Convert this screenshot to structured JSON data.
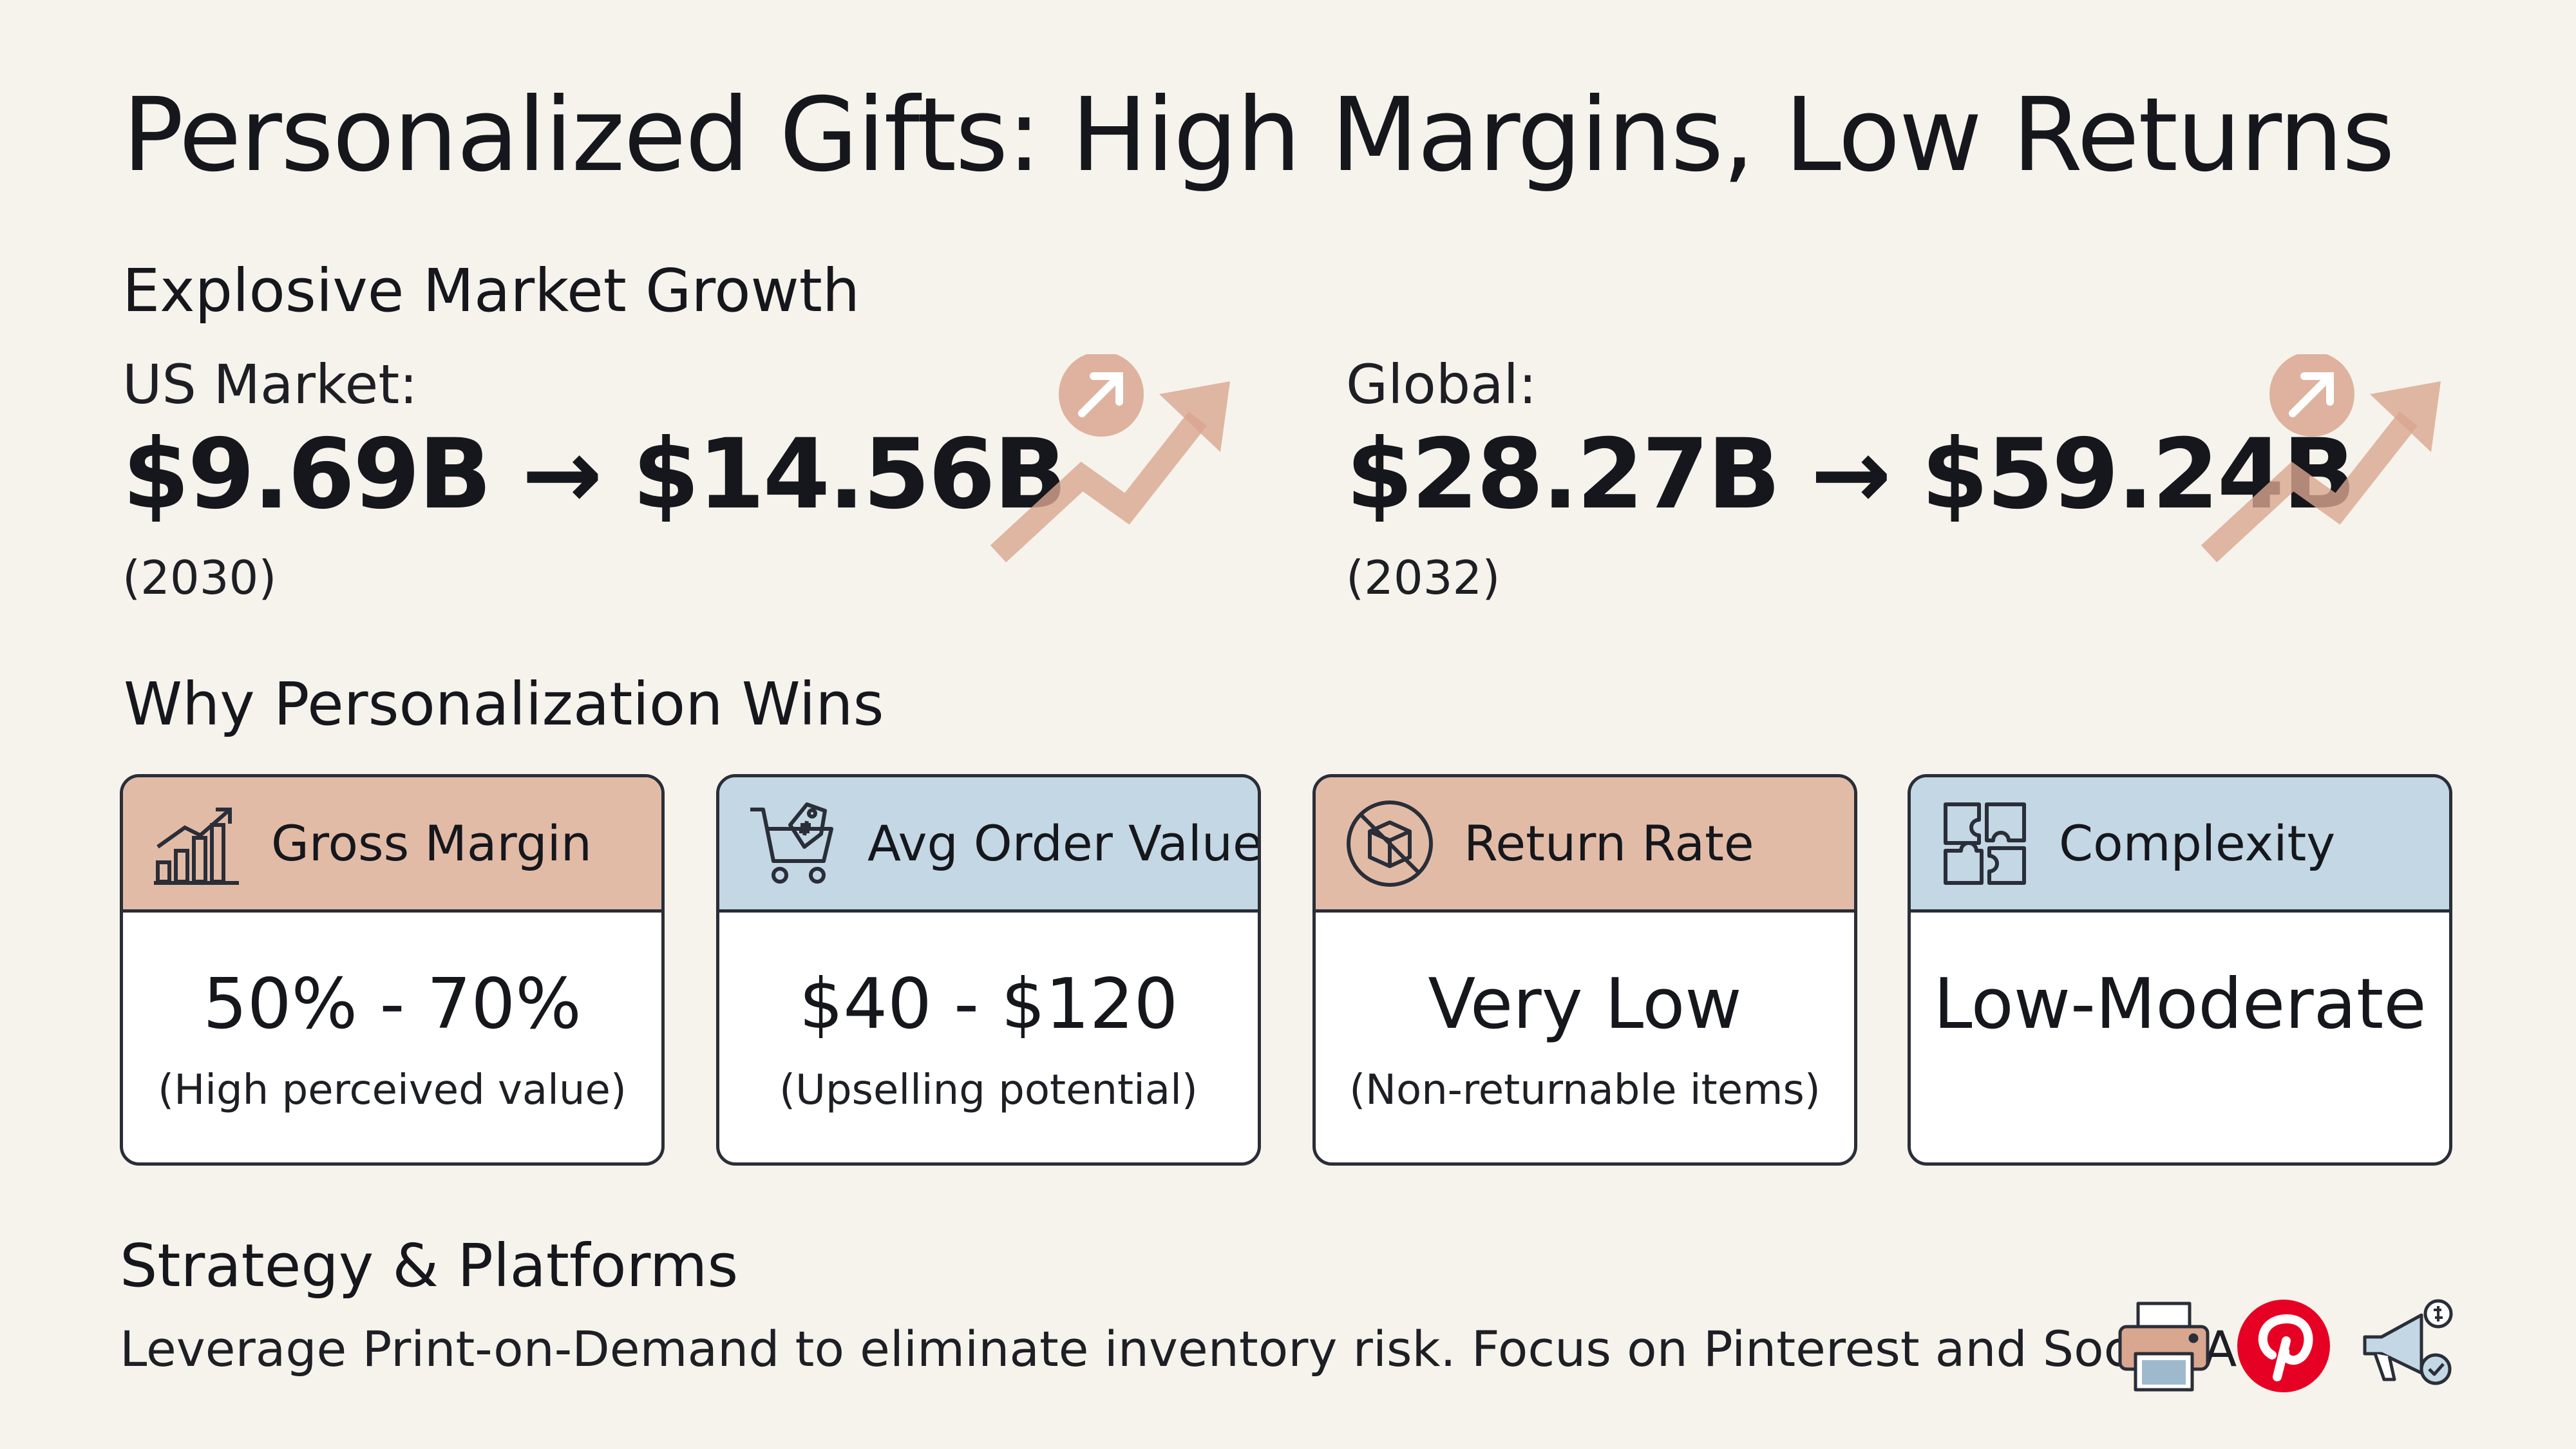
{
  "title": "Personalized Gifts: High Margins, Low Returns",
  "market": {
    "heading": "Explosive Market Growth",
    "us": {
      "label": "US Market:",
      "values": "$9.69B → $14.56B",
      "year": "(2030)",
      "icon": "trend-up-icon"
    },
    "global": {
      "label": "Global:",
      "values": "$28.27B → $59.24B",
      "year": "(2032)",
      "icon": "trend-up-icon"
    }
  },
  "why": {
    "heading": "Why Personalization Wins",
    "cards": [
      {
        "title": "Gross Margin",
        "value": "50% - 70%",
        "note": "(High perceived value)",
        "icon": "bar-chart-icon",
        "color": "#e2bba7"
      },
      {
        "title": "Avg Order Value",
        "value": "$40 - $120",
        "note": "(Upselling potential)",
        "icon": "shopping-cart-icon",
        "color": "#c3d7e4"
      },
      {
        "title": "Return Rate",
        "value": "Very Low",
        "note": "(Non-returnable items)",
        "icon": "no-return-box-icon",
        "color": "#e2bba7"
      },
      {
        "title": "Complexity",
        "value": "Low-Moderate",
        "note": "",
        "icon": "puzzle-icon",
        "color": "#c3d7e4"
      }
    ]
  },
  "strategy": {
    "heading": "Strategy & Platforms",
    "text": "Leverage Print-on-Demand to eliminate inventory risk. Focus on Pinterest and Social Ads.",
    "icons": [
      "printer-icon",
      "pinterest-icon",
      "megaphone-icon"
    ]
  },
  "colors": {
    "accent": "#d9a690",
    "tan": "#e2bba7",
    "blue": "#c3d7e4",
    "pinterest": "#e60023"
  }
}
